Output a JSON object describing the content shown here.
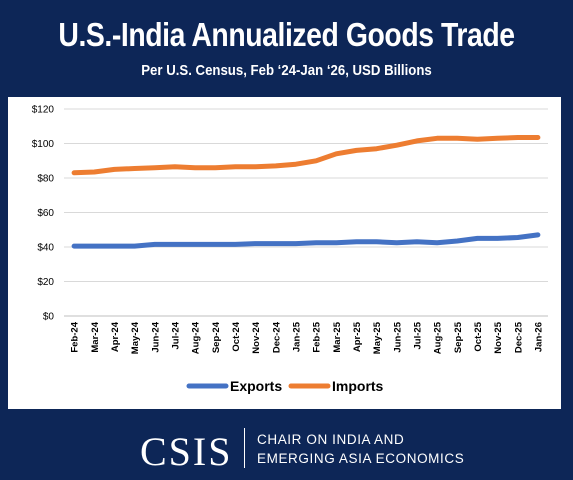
{
  "header": {
    "title": "U.S.-India Annualized Goods Trade",
    "subtitle": "Per U.S. Census, Feb ‘24-Jan ‘26, USD Billions"
  },
  "footer": {
    "logo_text": "CSIS",
    "org_line1": "CHAIR ON INDIA AND",
    "org_line2": "EMERGING ASIA ECONOMICS"
  },
  "colors": {
    "background": "#0d2657",
    "exports": "#4472c4",
    "imports": "#ed7d31"
  },
  "chart_data": {
    "type": "line",
    "title": "U.S.-India Annualized Goods Trade",
    "subtitle": "Per U.S. Census, Feb ‘24-Jan ‘26, USD Billions",
    "xlabel": "",
    "ylabel": "",
    "ylim": [
      0,
      120
    ],
    "yticks": [
      0,
      20,
      40,
      60,
      80,
      100,
      120
    ],
    "ytick_labels": [
      "$0",
      "$20",
      "$40",
      "$60",
      "$80",
      "$100",
      "$120"
    ],
    "grid": true,
    "legend_position": "bottom",
    "categories": [
      "Feb-24",
      "Mar-24",
      "Apr-24",
      "May-24",
      "Jun-24",
      "Jul-24",
      "Aug-24",
      "Sep-24",
      "Oct-24",
      "Nov-24",
      "Dec-24",
      "Jan-25",
      "Feb-25",
      "Mar-25",
      "Apr-25",
      "May-25",
      "Jun-25",
      "Jul-25",
      "Aug-25",
      "Sep-25",
      "Oct-25",
      "Nov-25",
      "Dec-25",
      "Jan-26"
    ],
    "series": [
      {
        "name": "Exports",
        "color": "#4472c4",
        "values": [
          40.5,
          40.5,
          40.5,
          40.5,
          41.5,
          41.5,
          41.5,
          41.5,
          41.5,
          42,
          42,
          42,
          42.5,
          42.5,
          43,
          43,
          42.5,
          43,
          42.5,
          43.5,
          45,
          45,
          45.5,
          47
        ]
      },
      {
        "name": "Imports",
        "color": "#ed7d31",
        "values": [
          83,
          83.5,
          85,
          85.5,
          86,
          86.5,
          86,
          86,
          86.5,
          86.5,
          87,
          88,
          90,
          94,
          96,
          97,
          99,
          101.5,
          103,
          103,
          102.5,
          103,
          103.5,
          103.5
        ]
      }
    ]
  }
}
